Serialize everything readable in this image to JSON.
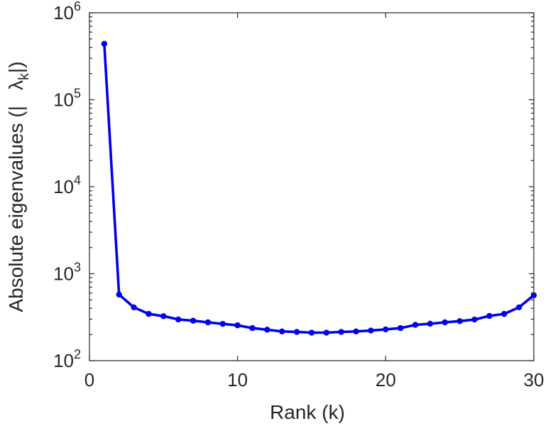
{
  "chart_data": {
    "type": "line",
    "title": "",
    "xlabel": "Rank (k)",
    "ylabel": "Absolute eigenvalues (|λk|)",
    "ylabel_parts": {
      "prefix": "Absolute eigenvalues (|",
      "symbol": "λ",
      "subscript": "k",
      "suffix": "|)"
    },
    "xlim": [
      0,
      30
    ],
    "ylim": [
      100,
      1000000
    ],
    "yscale": "log",
    "grid": false,
    "legend": "none",
    "x_ticks": [
      {
        "value": 0,
        "label": "0"
      },
      {
        "value": 10,
        "label": "10"
      },
      {
        "value": 20,
        "label": "20"
      },
      {
        "value": 30,
        "label": "30"
      }
    ],
    "y_ticks": [
      {
        "value": 100,
        "base": "10",
        "exp": "2"
      },
      {
        "value": 1000,
        "base": "10",
        "exp": "3"
      },
      {
        "value": 10000,
        "base": "10",
        "exp": "4"
      },
      {
        "value": 100000,
        "base": "10",
        "exp": "5"
      },
      {
        "value": 1000000,
        "base": "10",
        "exp": "6"
      }
    ],
    "series": [
      {
        "color": "#0000ee",
        "x": [
          1,
          2,
          3,
          4,
          5,
          6,
          7,
          8,
          9,
          10,
          11,
          12,
          13,
          14,
          15,
          16,
          17,
          18,
          19,
          20,
          21,
          22,
          23,
          24,
          25,
          26,
          27,
          28,
          29,
          30
        ],
        "values": [
          440000,
          575,
          410,
          345,
          325,
          298,
          288,
          276,
          265,
          255,
          237,
          227,
          217,
          214,
          210,
          210,
          214,
          217,
          222,
          229,
          237,
          258,
          266,
          276,
          285,
          297,
          327,
          345,
          410,
          565
        ]
      }
    ]
  }
}
